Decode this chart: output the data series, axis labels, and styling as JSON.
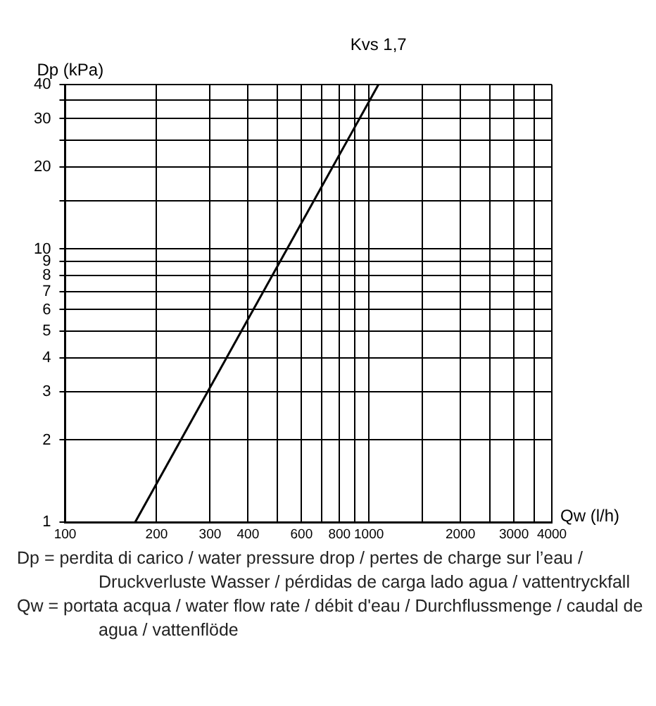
{
  "chart_data": {
    "type": "line",
    "xlabel": "Qw (l/h)",
    "ylabel": "Dp (kPa)",
    "log": "xy",
    "x": [
      170,
      1075
    ],
    "series": [
      {
        "color": "#000000",
        "values": [
          1,
          40
        ]
      }
    ],
    "xlim": [
      100,
      4000
    ],
    "ylim": [
      1,
      40
    ],
    "xticks": [
      100,
      200,
      300,
      400,
      {
        "value": 500,
        "label": null
      },
      600,
      {
        "value": 700,
        "label": null
      },
      800,
      {
        "value": 900,
        "label": null
      },
      1000,
      {
        "value": 1500,
        "label": null
      },
      2000,
      {
        "value": 2500,
        "label": null
      },
      3000,
      {
        "value": 3500,
        "label": null
      },
      4000
    ],
    "yticks": [
      1,
      2,
      3,
      4,
      5,
      6,
      7,
      8,
      9,
      10,
      {
        "value": 15,
        "label": null
      },
      20,
      {
        "value": 25,
        "label": null
      },
      30,
      {
        "value": 35,
        "label": null
      },
      40
    ],
    "grid": true,
    "legend": false,
    "marker": "none",
    "line_style": "solid",
    "annotations": [
      {
        "text": "Kvs 1,7",
        "x": 1075,
        "y": 40
      },
      "Dp = perdita di carico / water pressure drop / pertes de charge sur l’eau / Druckverluste Wasser / pérdidas de carga lado agua / vattentryckfall",
      "Qw = portata acqua / water flow rate / débit d'eau / Durchflussmenge / caudal de agua / vattenflöde"
    ]
  }
}
